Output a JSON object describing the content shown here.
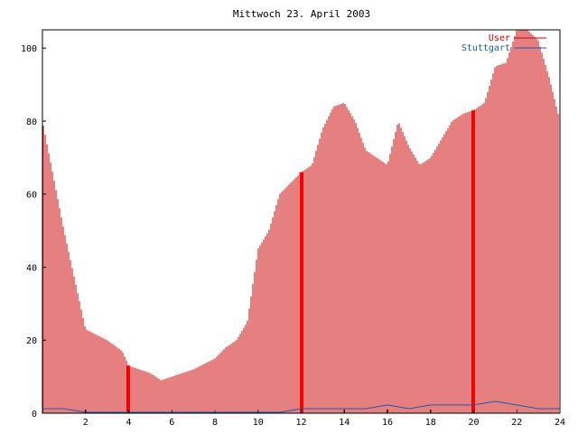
{
  "chart_data": {
    "type": "bar",
    "title": "Mittwoch 23. April 2003",
    "xlabel": "",
    "ylabel": "",
    "xlim": [
      0,
      24
    ],
    "ylim": [
      0,
      105
    ],
    "x_ticks": [
      2,
      4,
      6,
      8,
      10,
      12,
      14,
      16,
      18,
      20,
      22,
      24
    ],
    "y_ticks": [
      0,
      20,
      40,
      60,
      80,
      100
    ],
    "grid": false,
    "legend_position": "top-right",
    "colors": {
      "bars": "#cc0000",
      "highlight": "#ff0000",
      "secondary": "#1e5aa8"
    },
    "highlight_x": [
      4,
      12,
      20
    ],
    "series": [
      {
        "name": "User",
        "color": "#cc0000",
        "hours": [
          0,
          1,
          2,
          3,
          3.7,
          4,
          5,
          5.5,
          6,
          7,
          8,
          8.5,
          9,
          9.5,
          10,
          10.5,
          11,
          11.5,
          12,
          12.5,
          13,
          13.5,
          14,
          14.5,
          15,
          15.5,
          16,
          16.5,
          17,
          17.5,
          18,
          18.5,
          19,
          19.5,
          20,
          20.5,
          21,
          21.5,
          22,
          22.5,
          23,
          23.5,
          24
        ],
        "values": [
          80,
          50,
          23,
          20,
          17,
          13,
          11,
          9,
          10,
          12,
          15,
          18,
          20,
          25,
          45,
          50,
          60,
          63,
          66,
          68,
          78,
          84,
          85,
          80,
          72,
          70,
          68,
          80,
          73,
          68,
          70,
          75,
          80,
          82,
          83,
          85,
          95,
          96,
          105,
          105,
          102,
          92,
          80
        ]
      },
      {
        "name": "Stuttgart",
        "color": "#1e5aa8",
        "hours": [
          0,
          1,
          2,
          3,
          4,
          5,
          6,
          7,
          8,
          9,
          10,
          11,
          12,
          13,
          14,
          15,
          16,
          17,
          18,
          19,
          20,
          21,
          22,
          23,
          24
        ],
        "values": [
          1,
          1,
          0,
          0,
          0,
          0,
          0,
          0,
          0,
          0,
          0,
          0,
          1,
          1,
          1,
          1,
          2,
          1,
          2,
          2,
          2,
          3,
          2,
          1,
          1
        ]
      }
    ]
  }
}
